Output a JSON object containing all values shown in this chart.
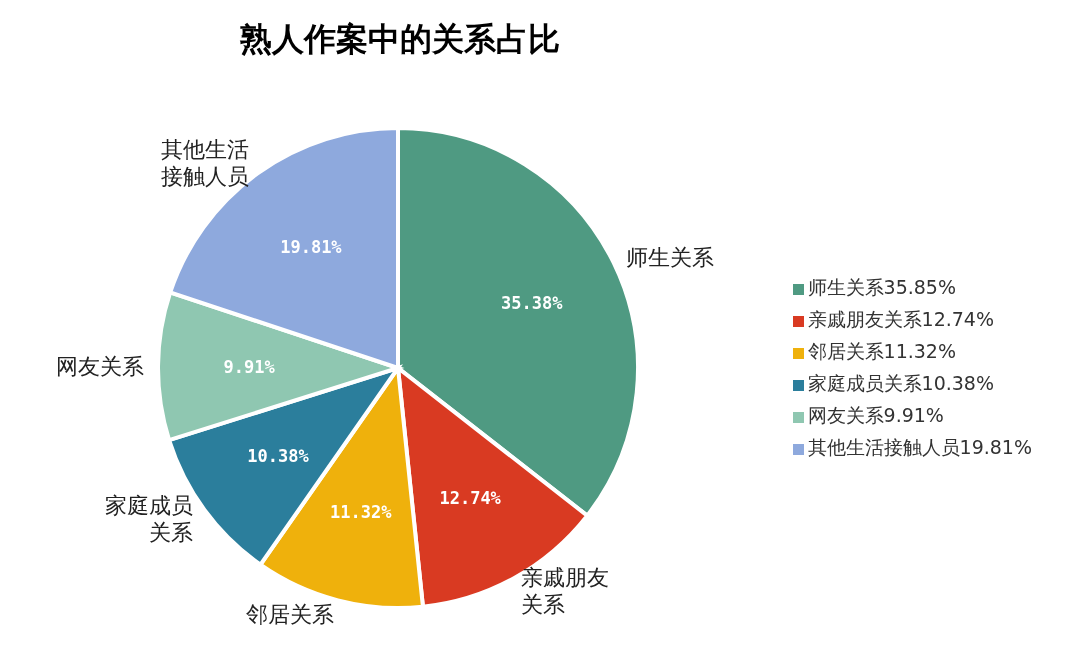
{
  "chart_data": {
    "type": "pie",
    "title": "熟人作案中的关系占比",
    "categories": [
      "师生关系35.85%",
      "亲戚朋友关系12.74%",
      "邻居关系11.32%",
      "家庭成员关系10.38%",
      "网友关系9.91%",
      "其他生活接触人员19.81%"
    ],
    "values": [
      35.38,
      12.74,
      11.32,
      10.38,
      9.91,
      19.81
    ],
    "value_labels": [
      "35.38%",
      "12.74%",
      "11.32%",
      "10.38%",
      "9.91%",
      "19.81%"
    ],
    "annotations": [
      "师生关系",
      "亲戚朋友关系",
      "邻居关系",
      "家庭成员关系",
      "网友关系",
      "其他生活接触人员"
    ],
    "colors": [
      "#4f9a82",
      "#d93a22",
      "#efb10c",
      "#2b7e9c",
      "#8fc7b1",
      "#8ea9dd"
    ],
    "legend": "right"
  }
}
